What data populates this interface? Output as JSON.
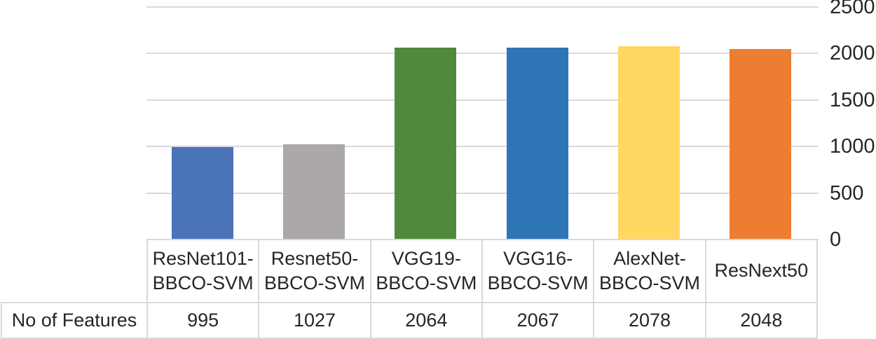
{
  "chart_data": {
    "type": "bar",
    "title": "",
    "xlabel": "",
    "ylabel": "",
    "categories": [
      "ResNet101-BBCO-SVM",
      "Resnet50-BBCO-SVM",
      "VGG19-BBCO-SVM",
      "VGG16-BBCO-SVM",
      "AlexNet-BBCO-SVM",
      "ResNext50"
    ],
    "series": [
      {
        "name": "No of Features",
        "values": [
          995,
          1027,
          2064,
          2067,
          2078,
          2048
        ]
      }
    ],
    "bar_colors": [
      "#4A73B8",
      "#ABA8A7",
      "#4F8A3C",
      "#2E75B6",
      "#FFD761",
      "#ED7D31"
    ],
    "ylim": [
      0,
      2500
    ],
    "yticks": [
      0,
      500,
      1000,
      1500,
      2000,
      2500
    ],
    "y_axis_side": "right",
    "grid": true,
    "legend": false,
    "data_table_shown": true
  },
  "colors": {
    "background": "#FFFFFF",
    "gridline": "#D9D9D9",
    "table_border": "#D9D9D9",
    "text": "#262626"
  }
}
